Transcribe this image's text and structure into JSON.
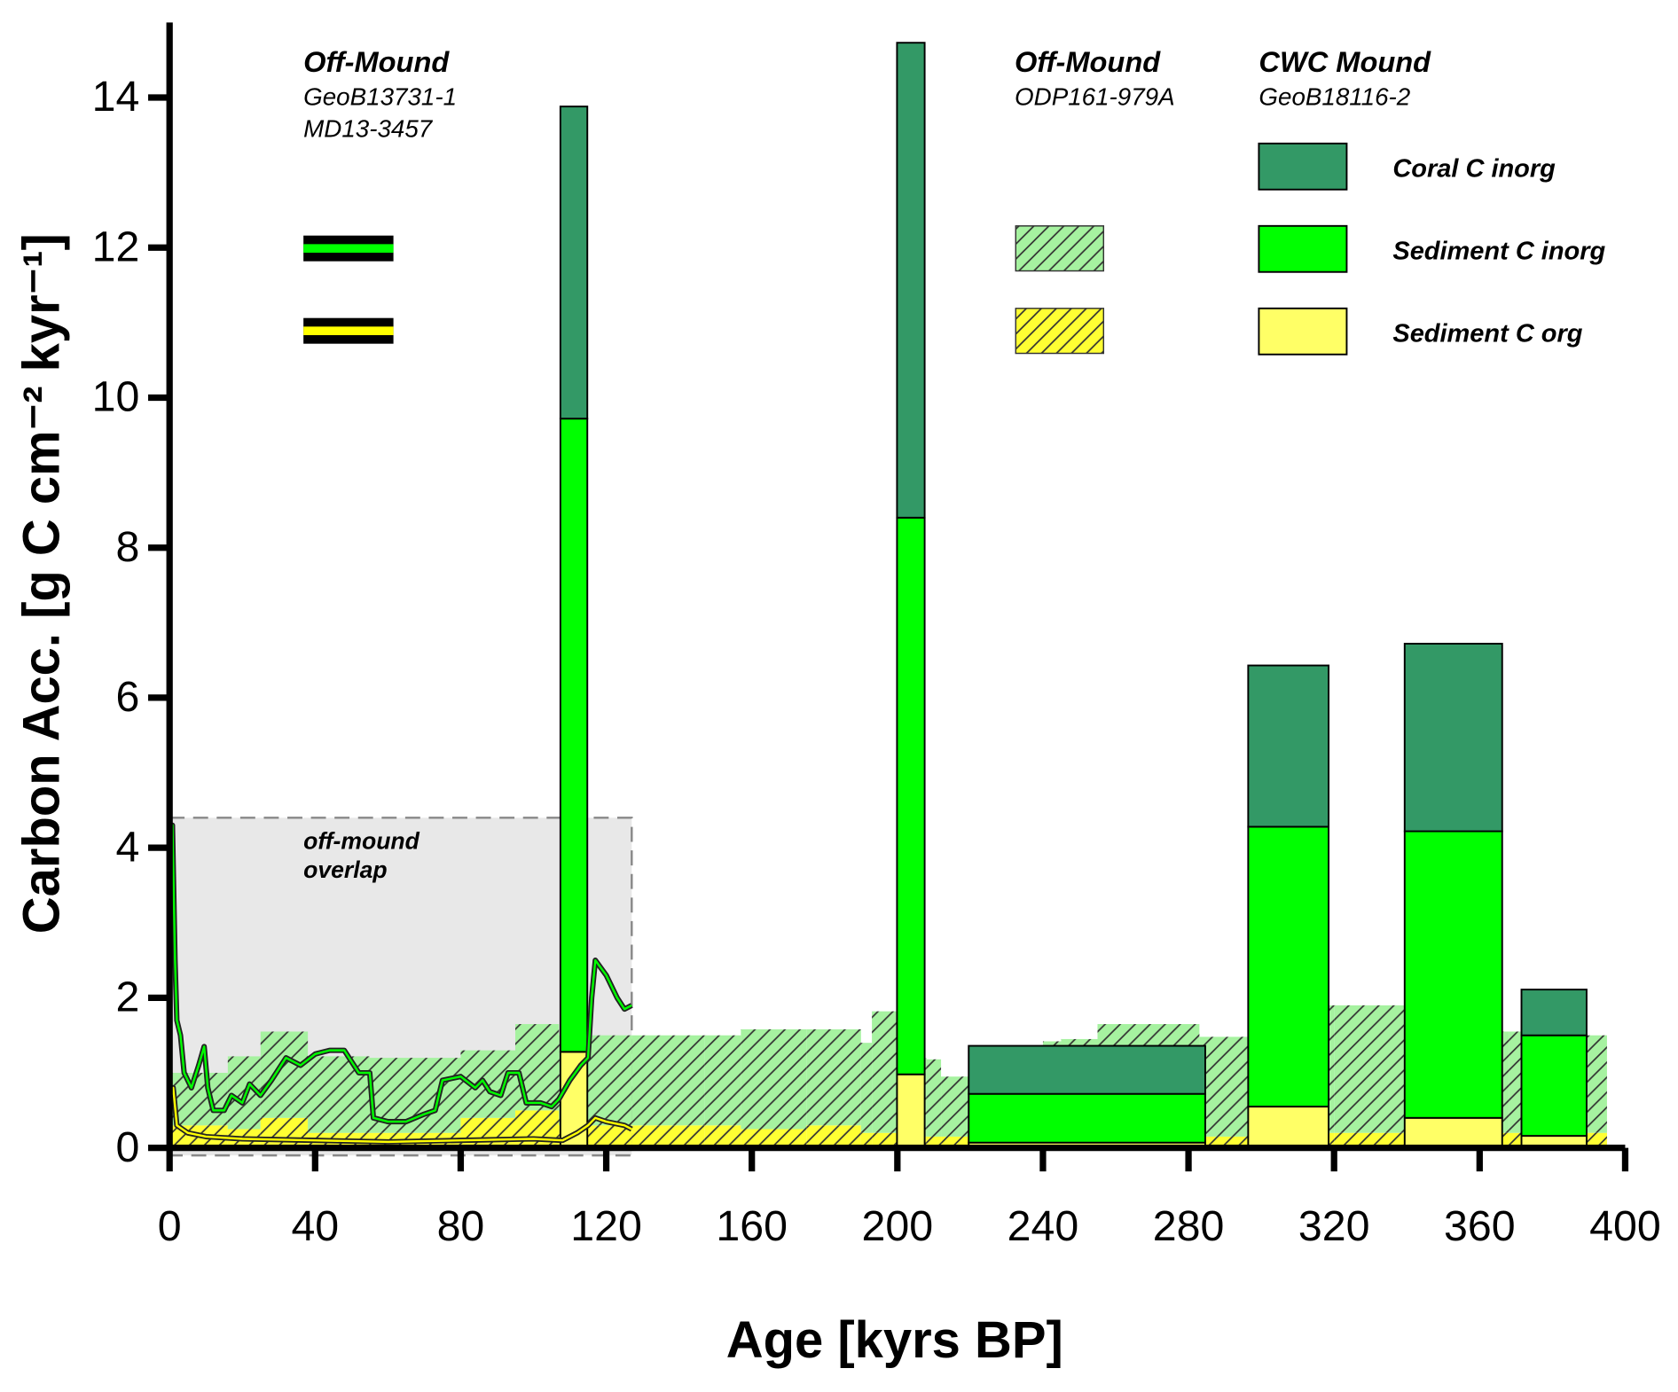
{
  "chart_data": {
    "type": "composite",
    "xlabel": "Age [kyrs BP]",
    "ylabel": "Carbon Acc. [g C cm⁻² kyr⁻¹]",
    "xlim": [
      0,
      400
    ],
    "ylim": [
      0,
      15
    ],
    "xticks": [
      0,
      40,
      80,
      120,
      160,
      200,
      240,
      280,
      320,
      360,
      400
    ],
    "yticks": [
      0,
      2,
      4,
      6,
      8,
      10,
      12,
      14
    ],
    "layers": [
      {
        "type": "region",
        "x": [
          0,
          127
        ],
        "y": [
          -0.1,
          4.4
        ],
        "label": [
          "off-mound",
          "overlap"
        ],
        "color": "#e8e8e8"
      },
      {
        "type": "hatched-step",
        "title": "Off-Mound",
        "subtitle": [
          "ODP161-979A"
        ],
        "bins": [
          0,
          16,
          25,
          38,
          55,
          80,
          95,
          107,
          127,
          147,
          157,
          175,
          190,
          193,
          200,
          208,
          212,
          220,
          240,
          245,
          255,
          283,
          297,
          300,
          320,
          340,
          368,
          373,
          395
        ],
        "series": [
          {
            "color": "#ffff33",
            "values": [
              0.3,
              0.25,
              0.4,
              0.2,
              0.2,
              0.4,
              0.5,
              0.3,
              0.3,
              0.3,
              0.25,
              0.3,
              0.2,
              0.2,
              0.15,
              0.15,
              0.15,
              0.15,
              0.15,
              0.15,
              0.15,
              0.15,
              0.2,
              0.2,
              0.2,
              0.2,
              0.2,
              0.2
            ]
          },
          {
            "color": "#a6f2a0",
            "values": [
              0.7,
              0.97,
              1.15,
              1.02,
              1.0,
              0.9,
              1.15,
              1.2,
              1.2,
              1.2,
              1.33,
              1.28,
              1.2,
              1.62,
              1.05,
              1.03,
              0.8,
              0.85,
              1.27,
              1.3,
              1.5,
              1.33,
              2.05,
              1.7,
              1.7,
              1.35,
              1.35,
              1.3
            ]
          }
        ]
      },
      {
        "type": "stacked-interval-bar",
        "title": "CWC Mound",
        "subtitle": [
          "GeoB18116-2"
        ],
        "x_start": [
          107.4,
          199.9,
          219.6,
          296.4,
          339.4,
          371.5
        ],
        "x_end": [
          114.8,
          207.5,
          284.6,
          318.5,
          366.2,
          389.4
        ],
        "series": [
          {
            "name": "Sediment C org",
            "color": "#ffff66",
            "values": [
              1.28,
              0.98,
              0.07,
              0.55,
              0.4,
              0.16
            ]
          },
          {
            "name": "Sediment C inorg",
            "color": "#00ff00",
            "values": [
              8.44,
              7.42,
              0.65,
              3.73,
              3.82,
              1.34
            ]
          },
          {
            "name": "Coral C inorg",
            "color": "#339966",
            "values": [
              4.16,
              6.33,
              0.64,
              2.15,
              2.5,
              0.61
            ]
          }
        ]
      },
      {
        "type": "line",
        "title": "Off-Mound",
        "subtitle": [
          "GeoB13731-1",
          "MD13-3457"
        ],
        "series": [
          {
            "color": "#ffff00",
            "x": [
              0.5,
              1,
              2,
              5,
              10,
              20,
              40,
              60,
              80,
              100,
              108,
              112,
              115,
              117,
              120,
              125,
              127
            ],
            "values": [
              0.7,
              0.8,
              0.3,
              0.2,
              0.15,
              0.12,
              0.1,
              0.08,
              0.1,
              0.12,
              0.1,
              0.2,
              0.3,
              0.4,
              0.35,
              0.3,
              0.25
            ]
          },
          {
            "color": "#00ff00",
            "x": [
              0.3,
              0.8,
              1.5,
              2,
              3,
              4,
              6,
              8,
              9.5,
              10.5,
              12,
              15,
              17,
              20,
              22,
              25,
              28,
              32,
              36,
              40,
              44,
              48,
              52,
              55,
              56,
              60,
              65,
              70,
              73,
              75,
              80,
              84,
              86,
              88,
              91,
              93,
              96,
              98,
              102,
              105,
              107,
              110,
              113,
              115,
              116,
              117,
              120,
              123,
              125,
              127
            ],
            "values": [
              3.4,
              4.3,
              2.5,
              1.7,
              1.5,
              1.0,
              0.8,
              1.1,
              1.35,
              0.8,
              0.5,
              0.5,
              0.7,
              0.6,
              0.85,
              0.7,
              0.9,
              1.2,
              1.1,
              1.25,
              1.3,
              1.3,
              1.0,
              1.0,
              0.4,
              0.35,
              0.35,
              0.45,
              0.5,
              0.9,
              0.95,
              0.8,
              0.9,
              0.75,
              0.7,
              1.0,
              1.0,
              0.6,
              0.6,
              0.55,
              0.65,
              0.9,
              1.1,
              1.2,
              2.0,
              2.5,
              2.3,
              2.0,
              1.85,
              1.9
            ]
          }
        ]
      }
    ]
  }
}
